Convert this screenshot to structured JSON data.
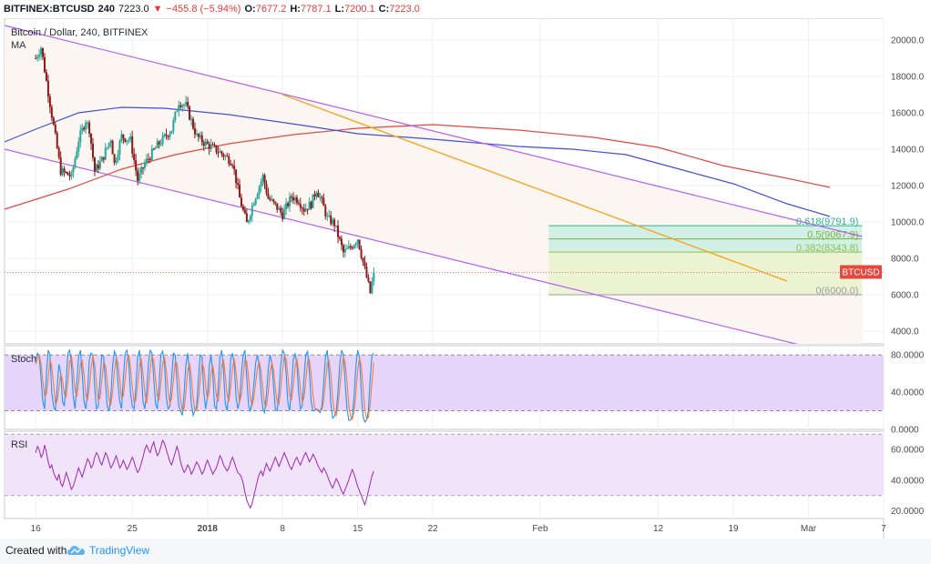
{
  "header": {
    "symbol": "BITFINEX:BTCUSD",
    "interval": "240",
    "last": "7223.0",
    "change_arrow": "▼",
    "change": "−455.8 (−5.94%)",
    "o_label": "O:",
    "o_value": "7677.2",
    "h_label": "H:",
    "h_value": "7787.1",
    "l_label": "L:",
    "l_value": "7200.1",
    "c_label": "C:",
    "c_value": "7223.0"
  },
  "footer": {
    "created_with": "Created with",
    "brand": "TradingView",
    "logo_icon": "tradingview-cloud-icon"
  },
  "colors": {
    "up": "#26a69a",
    "down": "#8e1a1a",
    "channel": "#b65ef0",
    "trendline": "#f5a623",
    "ma100": "#3f51d4",
    "ma200": "#e5483f",
    "stoch_k": "#2196f3",
    "stoch_d": "#f57c3a",
    "rsi": "#9c27b0",
    "fib_green": "#c8eee4",
    "fib_yellow": "#e7f3cc"
  },
  "chart_data": [
    {
      "type": "candlestick",
      "title": "Bitcoin / Dollar, 240, BITFINEX",
      "indicator_label": "MA",
      "ylim": [
        3300,
        21200
      ],
      "y_ticks": [
        4000,
        6000,
        8000,
        10000,
        12000,
        14000,
        16000,
        18000,
        20000
      ],
      "y_tick_labels": [
        "4000.0",
        "6000.0",
        "8000.0",
        "10000.0",
        "12000.0",
        "14000.0",
        "16000.0",
        "18000.0",
        "20000.0"
      ],
      "x_tick_labels": [
        "16",
        "25",
        "2018",
        "8",
        "15",
        "22",
        "Feb",
        "12",
        "19",
        "Mar",
        "7"
      ],
      "x_tick_days": [
        0,
        9,
        16,
        23,
        30,
        37,
        47,
        58,
        65,
        72,
        79
      ],
      "x_range_days": [
        -2.9,
        79
      ],
      "last_price_label": "BTCUSD",
      "last_price": 7223,
      "last_index": 189,
      "candles_per_day": 6,
      "price_path": [
        [
          0,
          19000
        ],
        [
          3,
          19600
        ],
        [
          8,
          16500
        ],
        [
          14,
          12800
        ],
        [
          20,
          12500
        ],
        [
          24,
          14500
        ],
        [
          28,
          15600
        ],
        [
          30,
          15100
        ],
        [
          33,
          12800
        ],
        [
          37,
          13400
        ],
        [
          42,
          14600
        ],
        [
          44,
          13200
        ],
        [
          48,
          14700
        ],
        [
          53,
          14500
        ],
        [
          57,
          12300
        ],
        [
          61,
          13200
        ],
        [
          68,
          14200
        ],
        [
          76,
          15100
        ],
        [
          80,
          16600
        ],
        [
          84,
          16400
        ],
        [
          90,
          14700
        ],
        [
          95,
          14300
        ],
        [
          102,
          13900
        ],
        [
          110,
          13300
        ],
        [
          114,
          11300
        ],
        [
          118,
          9900
        ],
        [
          122,
          11200
        ],
        [
          127,
          12500
        ],
        [
          130,
          11300
        ],
        [
          134,
          10900
        ],
        [
          138,
          10400
        ],
        [
          143,
          11400
        ],
        [
          147,
          11200
        ],
        [
          150,
          10700
        ],
        [
          154,
          11000
        ],
        [
          157,
          11800
        ],
        [
          160,
          11100
        ],
        [
          163,
          10200
        ],
        [
          167,
          9900
        ],
        [
          172,
          8300
        ],
        [
          176,
          8600
        ],
        [
          180,
          9100
        ],
        [
          183,
          7800
        ],
        [
          187,
          6100
        ],
        [
          189,
          7223
        ]
      ],
      "ma100_path": [
        [
          -2.9,
          14400
        ],
        [
          0,
          15100
        ],
        [
          4,
          16000
        ],
        [
          8,
          16300
        ],
        [
          12,
          16250
        ],
        [
          18,
          15900
        ],
        [
          25,
          15300
        ],
        [
          30,
          14850
        ],
        [
          37,
          14550
        ],
        [
          45,
          14150
        ],
        [
          50,
          14000
        ],
        [
          55,
          13700
        ],
        [
          60,
          12900
        ],
        [
          65,
          12100
        ],
        [
          70,
          11000
        ],
        [
          74,
          10300
        ]
      ],
      "ma200_path": [
        [
          -2.9,
          10700
        ],
        [
          3,
          11800
        ],
        [
          8,
          12900
        ],
        [
          13,
          13700
        ],
        [
          18,
          14300
        ],
        [
          24,
          14800
        ],
        [
          30,
          15150
        ],
        [
          37,
          15350
        ],
        [
          45,
          15050
        ],
        [
          52,
          14650
        ],
        [
          58,
          14100
        ],
        [
          64,
          13100
        ],
        [
          70,
          12400
        ],
        [
          74,
          11900
        ]
      ],
      "channel_upper": [
        [
          -2.9,
          20800
        ],
        [
          77,
          9200
        ]
      ],
      "channel_lower": [
        [
          -2.9,
          14000
        ],
        [
          77,
          2400
        ]
      ],
      "trendline": [
        [
          23,
          17000
        ],
        [
          70,
          6750
        ]
      ],
      "fib_box_days": [
        47.8,
        77
      ],
      "fib_levels": [
        {
          "ratio": 0.618,
          "price": 9791.9,
          "label": "0.618(9791.9)"
        },
        {
          "ratio": 0.5,
          "price": 9067.9,
          "label": "0.5(9067.9)"
        },
        {
          "ratio": 0.382,
          "price": 8343.8,
          "label": "0.382(8343.8)"
        },
        {
          "ratio": 0,
          "price": 6000.0,
          "label": "0(6000.0)"
        }
      ]
    },
    {
      "type": "line",
      "title": "Stoch",
      "ylim": [
        0,
        90
      ],
      "y_ticks": [
        0,
        40,
        80
      ],
      "y_tick_labels": [
        "0.0000",
        "40.0000",
        "80.0000"
      ],
      "band": [
        20,
        80
      ],
      "series": [
        {
          "key": "k",
          "values": [
            75,
            82,
            78,
            55,
            30,
            22,
            60,
            85,
            80,
            40,
            25,
            20,
            45,
            70,
            60,
            30,
            25,
            50,
            82,
            85,
            70,
            35,
            22,
            50,
            78,
            85,
            60,
            30,
            22,
            40,
            75,
            82,
            80,
            45,
            22,
            25,
            55,
            80,
            78,
            50,
            25,
            20,
            35,
            68,
            84,
            80,
            50,
            30,
            22,
            55,
            82,
            85,
            72,
            40,
            25,
            22,
            45,
            78,
            85,
            65,
            30,
            22,
            40,
            70,
            85,
            82,
            55,
            28,
            22,
            48,
            80,
            84,
            70,
            35,
            22,
            25,
            55,
            82,
            80,
            50,
            25,
            20,
            15,
            40,
            70,
            82,
            60,
            28,
            15,
            20,
            25,
            55,
            80,
            78,
            40,
            22,
            35,
            68,
            80,
            60,
            25,
            22,
            45,
            78,
            85,
            62,
            28,
            20,
            40,
            75,
            82,
            70,
            35,
            22,
            30,
            60,
            80,
            85,
            55,
            25,
            20,
            30,
            50,
            72,
            80,
            68,
            40,
            22,
            18,
            38,
            65,
            80,
            72,
            45,
            22,
            20,
            40,
            70,
            85,
            82,
            60,
            28,
            20,
            45,
            75,
            82,
            70,
            40,
            22,
            25,
            55,
            80,
            84,
            62,
            30,
            20,
            20,
            22,
            20,
            18,
            25,
            50,
            78,
            85,
            60,
            28,
            12,
            14,
            20,
            40,
            70,
            85,
            80,
            50,
            22,
            10,
            10,
            14,
            35,
            68,
            85,
            78,
            40,
            14,
            8,
            10,
            20,
            55,
            80,
            82
          ]
        },
        {
          "key": "d",
          "values": [
            70,
            76,
            80,
            70,
            52,
            36,
            38,
            55,
            75,
            68,
            48,
            28,
            30,
            45,
            60,
            53,
            38,
            35,
            52,
            72,
            79,
            63,
            42,
            35,
            50,
            71,
            74,
            58,
            37,
            31,
            45,
            66,
            79,
            69,
            49,
            31,
            34,
            53,
            71,
            69,
            51,
            32,
            26,
            41,
            62,
            77,
            71,
            53,
            34,
            36,
            54,
            74,
            80,
            66,
            45,
            29,
            31,
            48,
            69,
            76,
            60,
            39,
            28,
            44,
            65,
            79,
            74,
            55,
            35,
            32,
            50,
            71,
            78,
            63,
            42,
            27,
            34,
            54,
            72,
            71,
            52,
            32,
            20,
            23,
            41,
            64,
            71,
            57,
            34,
            21,
            20,
            33,
            53,
            71,
            66,
            47,
            32,
            42,
            61,
            69,
            55,
            36,
            30,
            48,
            69,
            75,
            58,
            37,
            30,
            45,
            66,
            76,
            62,
            42,
            29,
            37,
            57,
            75,
            73,
            55,
            33,
            25,
            35,
            51,
            67,
            73,
            63,
            43,
            27,
            25,
            40,
            61,
            72,
            63,
            43,
            29,
            27,
            43,
            65,
            79,
            76,
            57,
            36,
            31,
            47,
            67,
            76,
            62,
            42,
            29,
            34,
            53,
            73,
            75,
            59,
            37,
            23,
            21,
            21,
            20,
            21,
            31,
            51,
            71,
            74,
            58,
            33,
            18,
            15,
            25,
            45,
            65,
            78,
            72,
            51,
            27,
            14,
            11,
            20,
            39,
            63,
            77,
            68,
            44,
            21,
            11,
            13,
            28,
            52,
            72
          ]
        }
      ]
    },
    {
      "type": "line",
      "title": "RSI",
      "ylim": [
        15,
        72
      ],
      "y_ticks": [
        20,
        40,
        60
      ],
      "y_tick_labels": [
        "20.0000",
        "40.0000",
        "60.0000"
      ],
      "band": [
        30,
        70
      ],
      "values": [
        58,
        62,
        60,
        55,
        57,
        63,
        58,
        52,
        48,
        50,
        45,
        42,
        40,
        44,
        38,
        36,
        40,
        45,
        42,
        38,
        34,
        36,
        40,
        44,
        48,
        45,
        42,
        46,
        50,
        54,
        52,
        48,
        50,
        55,
        58,
        56,
        52,
        50,
        54,
        58,
        56,
        52,
        48,
        50,
        53,
        56,
        52,
        48,
        50,
        53,
        50,
        47,
        49,
        52,
        55,
        52,
        48,
        45,
        47,
        51,
        55,
        60,
        63,
        60,
        58,
        62,
        65,
        60,
        56,
        58,
        62,
        66,
        64,
        60,
        56,
        52,
        50,
        54,
        58,
        62,
        58,
        52,
        48,
        45,
        47,
        50,
        48,
        44,
        46,
        49,
        52,
        50,
        47,
        44,
        46,
        50,
        53,
        50,
        47,
        44,
        46,
        48,
        52,
        56,
        54,
        50,
        48,
        46,
        48,
        52,
        55,
        52,
        48,
        45,
        44,
        42,
        38,
        32,
        27,
        24,
        22,
        25,
        30,
        35,
        40,
        44,
        46,
        43,
        47,
        51,
        48,
        46,
        49,
        52,
        55,
        52,
        49,
        52,
        55,
        58,
        55,
        52,
        49,
        47,
        50,
        53,
        55,
        52,
        50,
        53,
        56,
        58,
        55,
        52,
        54,
        57,
        55,
        52,
        49,
        47,
        45,
        48,
        46,
        43,
        40,
        37,
        35,
        38,
        41,
        39,
        36,
        33,
        31,
        34,
        37,
        40,
        44,
        47,
        44,
        40,
        36,
        33,
        30,
        27,
        24,
        28,
        33,
        38,
        43,
        46
      ]
    }
  ]
}
